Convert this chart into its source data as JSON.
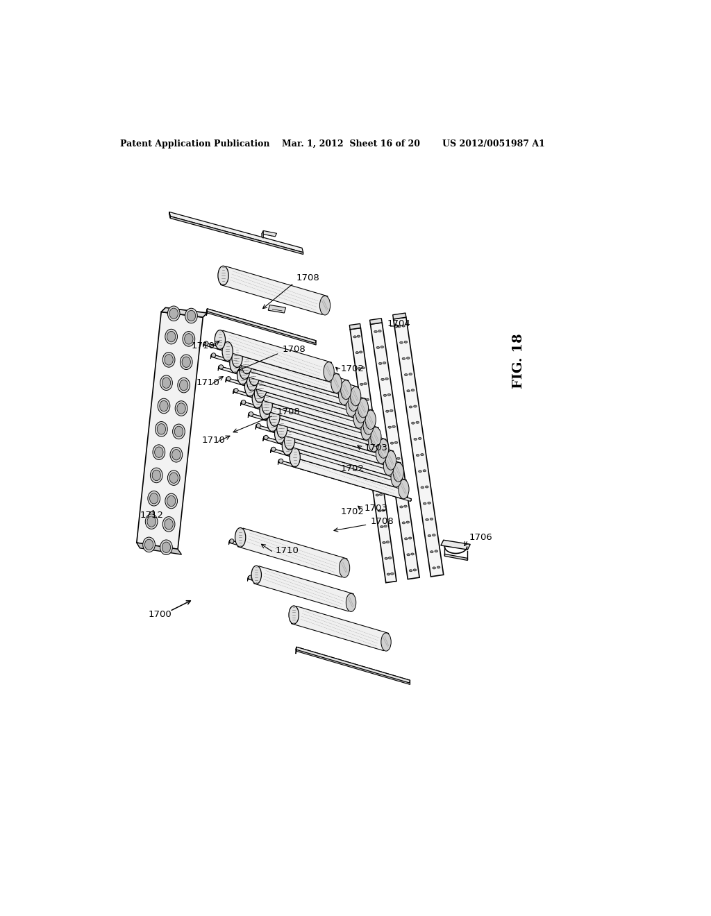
{
  "background_color": "#ffffff",
  "header_left": "Patent Application Publication",
  "header_center": "Mar. 1, 2012  Sheet 16 of 20",
  "header_right": "US 2012/0051987 A1",
  "fig_label": "FIG. 18",
  "fig_number": "1700",
  "lc": "#000000"
}
